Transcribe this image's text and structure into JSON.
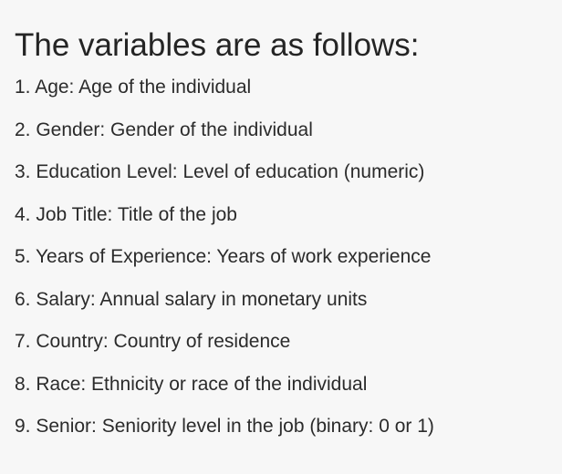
{
  "heading": "The variables are as follows:",
  "variables": [
    "1. Age: Age of the individual",
    "2. Gender: Gender of the individual",
    "3. Education Level: Level of education (numeric)",
    "4. Job Title: Title of the job",
    "5. Years of Experience: Years of work experience",
    "6. Salary: Annual salary in monetary units",
    "7. Country: Country of residence",
    "8. Race: Ethnicity or race of the individual",
    "9. Senior: Seniority level in the job (binary: 0 or 1)"
  ]
}
